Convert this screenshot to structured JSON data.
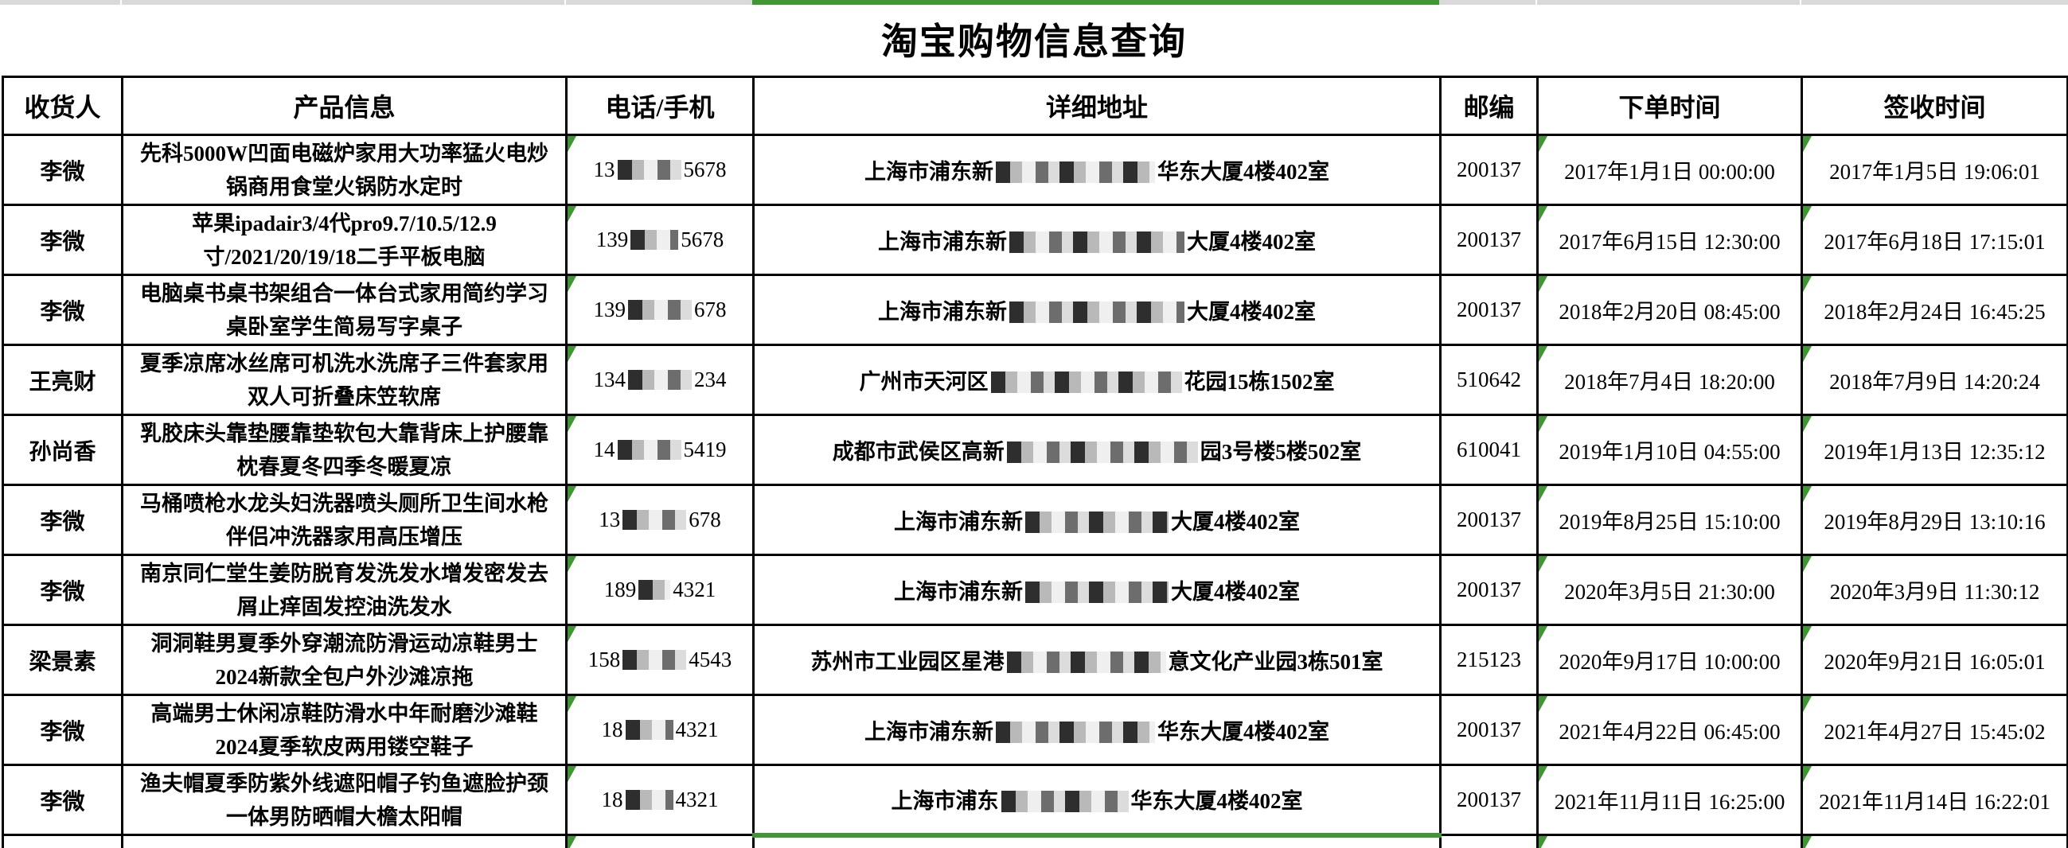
{
  "colors": {
    "accent_green": "#3f9632",
    "strip_grey": "#d9d9d9",
    "border_black": "#000000"
  },
  "page": {
    "title": "淘宝购物信息查询"
  },
  "table": {
    "headers": {
      "recipient": "收货人",
      "product": "产品信息",
      "phone": "电话/手机",
      "address": "详细地址",
      "postcode": "邮编",
      "order_time": "下单时间",
      "sign_time": "签收时间"
    },
    "rows": [
      {
        "recipient": "李微",
        "product": "先科5000W凹面电磁炉家用大功率猛火电炒锅商用食堂火锅防水定时",
        "phone": {
          "prefix": "13",
          "redact": 4,
          "suffix": "5678"
        },
        "address": {
          "prefix": "上海市浦东新",
          "redact": 10,
          "suffix": "华东大厦4楼402室"
        },
        "postcode": "200137",
        "order_time": "2017年1月1日 00:00:00",
        "sign_time": "2017年1月5日 19:06:01"
      },
      {
        "recipient": "李微",
        "product": "苹果ipadair3/4代pro9.7/10.5/12.9寸/2021/20/19/18二手平板电脑",
        "phone": {
          "prefix": "139",
          "redact": 3,
          "suffix": "5678"
        },
        "address": {
          "prefix": "上海市浦东新",
          "redact": 11,
          "suffix": "大厦4楼402室"
        },
        "postcode": "200137",
        "order_time": "2017年6月15日 12:30:00",
        "sign_time": "2017年6月18日 17:15:01"
      },
      {
        "recipient": "李微",
        "product": "电脑桌书桌书架组合一体台式家用简约学习桌卧室学生简易写字桌子",
        "phone": {
          "prefix": "139",
          "redact": 4,
          "suffix": "678"
        },
        "address": {
          "prefix": "上海市浦东新",
          "redact": 11,
          "suffix": "大厦4楼402室"
        },
        "postcode": "200137",
        "order_time": "2018年2月20日 08:45:00",
        "sign_time": "2018年2月24日 16:45:25"
      },
      {
        "recipient": "王亮财",
        "product": "夏季凉席冰丝席可机洗水洗席子三件套家用双人可折叠床笠软席",
        "phone": {
          "prefix": "134",
          "redact": 4,
          "suffix": "234"
        },
        "address": {
          "prefix": "广州市天河区",
          "redact": 12,
          "suffix": "花园15栋1502室"
        },
        "postcode": "510642",
        "order_time": "2018年7月4日 18:20:00",
        "sign_time": "2018年7月9日 14:20:24"
      },
      {
        "recipient": "孙尚香",
        "product": "乳胶床头靠垫腰靠垫软包大靠背床上护腰靠枕春夏冬四季冬暖夏凉",
        "phone": {
          "prefix": "14",
          "redact": 4,
          "suffix": "5419"
        },
        "address": {
          "prefix": "成都市武侯区高新",
          "redact": 12,
          "suffix": "园3号楼5楼502室"
        },
        "postcode": "610041",
        "order_time": "2019年1月10日 04:55:00",
        "sign_time": "2019年1月13日 12:35:12"
      },
      {
        "recipient": "李微",
        "product": "马桶喷枪水龙头妇洗器喷头厕所卫生间水枪伴侣冲洗器家用高压增压",
        "phone": {
          "prefix": "13",
          "redact": 4,
          "suffix": "678"
        },
        "address": {
          "prefix": "上海市浦东新",
          "redact": 9,
          "suffix": "大厦4楼402室"
        },
        "postcode": "200137",
        "order_time": "2019年8月25日 15:10:00",
        "sign_time": "2019年8月29日 13:10:16"
      },
      {
        "recipient": "李微",
        "product": "南京同仁堂生姜防脱育发洗发水增发密发去屑止痒固发控油洗发水",
        "phone": {
          "prefix": "189",
          "redact": 2,
          "suffix": "4321"
        },
        "address": {
          "prefix": "上海市浦东新",
          "redact": 9,
          "suffix": "大厦4楼402室"
        },
        "postcode": "200137",
        "order_time": "2020年3月5日 21:30:00",
        "sign_time": "2020年3月9日 11:30:12"
      },
      {
        "recipient": "梁景素",
        "product": "洞洞鞋男夏季外穿潮流防滑运动凉鞋男士2024新款全包户外沙滩凉拖",
        "phone": {
          "prefix": "158",
          "redact": 4,
          "suffix": "4543"
        },
        "address": {
          "prefix": "苏州市工业园区星港",
          "redact": 10,
          "suffix": "意文化产业园3栋501室"
        },
        "postcode": "215123",
        "order_time": "2020年9月17日 10:00:00",
        "sign_time": "2020年9月21日 16:05:01"
      },
      {
        "recipient": "李微",
        "product": "高端男士休闲凉鞋防滑水中年耐磨沙滩鞋2024夏季软皮两用镂空鞋子",
        "phone": {
          "prefix": "18",
          "redact": 3,
          "suffix": "4321"
        },
        "address": {
          "prefix": "上海市浦东新",
          "redact": 10,
          "suffix": "华东大厦4楼402室"
        },
        "postcode": "200137",
        "order_time": "2021年4月22日 06:45:00",
        "sign_time": "2021年4月27日 15:45:02"
      },
      {
        "recipient": "李微",
        "product": "渔夫帽夏季防紫外线遮阳帽子钓鱼遮脸护颈一体男防晒帽大檐太阳帽",
        "phone": {
          "prefix": "18",
          "redact": 3,
          "suffix": "4321"
        },
        "address": {
          "prefix": "上海市浦东",
          "redact": 8,
          "suffix": "华东大厦4楼402室"
        },
        "postcode": "200137",
        "order_time": "2021年11月11日 16:25:00",
        "sign_time": "2021年11月14日 16:22:01"
      }
    ]
  }
}
